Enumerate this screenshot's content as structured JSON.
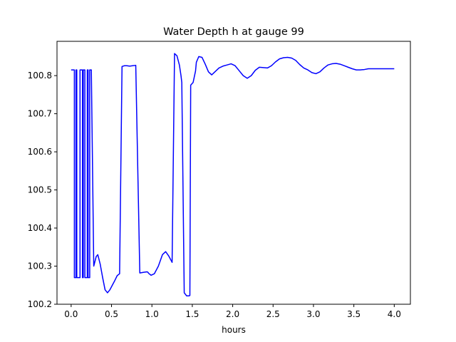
{
  "chart_data": {
    "type": "line",
    "title": "Water Depth h at gauge 99",
    "xlabel": "hours",
    "ylabel": "",
    "xlim": [
      -0.175,
      4.2
    ],
    "ylim": [
      100.2,
      100.89
    ],
    "xticks": [
      0.0,
      0.5,
      1.0,
      1.5,
      2.0,
      2.5,
      3.0,
      3.5,
      4.0
    ],
    "xtick_labels": [
      "0.0",
      "0.5",
      "1.0",
      "1.5",
      "2.0",
      "2.5",
      "3.0",
      "3.5",
      "4.0"
    ],
    "yticks": [
      100.2,
      100.3,
      100.4,
      100.5,
      100.6,
      100.7,
      100.8
    ],
    "ytick_labels": [
      "100.2",
      "100.3",
      "100.4",
      "100.5",
      "100.6",
      "100.7",
      "100.8"
    ],
    "grid": false,
    "line_color": "#0000ff",
    "series": [
      {
        "x": [
          0.0,
          0.04,
          0.04,
          0.06,
          0.06,
          0.07,
          0.07,
          0.11,
          0.11,
          0.14,
          0.14,
          0.15,
          0.15,
          0.17,
          0.17,
          0.2,
          0.2,
          0.21,
          0.21,
          0.23,
          0.23,
          0.25,
          0.28,
          0.31,
          0.33,
          0.36,
          0.39,
          0.42,
          0.45,
          0.48,
          0.51,
          0.54,
          0.57,
          0.6,
          0.63,
          0.66,
          0.69,
          0.72,
          0.73,
          0.76,
          0.8,
          0.85,
          0.9,
          0.94,
          0.95,
          0.96,
          0.99,
          1.03,
          1.08,
          1.13,
          1.17,
          1.21,
          1.25,
          1.28,
          1.31,
          1.34,
          1.36,
          1.37,
          1.4,
          1.43,
          1.46,
          1.47,
          1.48,
          1.51,
          1.54,
          1.55,
          1.58,
          1.62,
          1.66,
          1.7,
          1.74,
          1.78,
          1.83,
          1.88,
          1.93,
          1.98,
          2.03,
          2.08,
          2.13,
          2.18,
          2.23,
          2.28,
          2.33,
          2.38,
          2.43,
          2.48,
          2.53,
          2.58,
          2.63,
          2.68,
          2.73,
          2.78,
          2.83,
          2.88,
          2.93,
          2.98,
          3.03,
          3.08,
          3.13,
          3.18,
          3.23,
          3.28,
          3.33,
          3.38,
          3.43,
          3.48,
          3.53,
          3.58,
          3.63,
          3.68,
          3.73,
          3.78,
          3.83,
          3.88,
          3.93,
          4.0
        ],
        "y": [
          100.815,
          100.815,
          100.27,
          100.27,
          100.815,
          100.815,
          100.27,
          100.27,
          100.815,
          100.815,
          100.27,
          100.27,
          100.815,
          100.815,
          100.27,
          100.27,
          100.815,
          100.815,
          100.27,
          100.27,
          100.815,
          100.815,
          100.3,
          100.325,
          100.33,
          100.305,
          100.27,
          100.238,
          100.23,
          100.238,
          100.25,
          100.262,
          100.275,
          100.28,
          100.824,
          100.826,
          100.826,
          100.825,
          100.825,
          100.826,
          100.827,
          100.282,
          100.284,
          100.285,
          100.284,
          100.281,
          100.276,
          100.28,
          100.3,
          100.33,
          100.338,
          100.326,
          100.31,
          100.858,
          100.852,
          100.828,
          100.8,
          100.782,
          100.23,
          100.222,
          100.222,
          100.223,
          100.775,
          100.782,
          100.812,
          100.835,
          100.85,
          100.848,
          100.83,
          100.81,
          100.802,
          100.81,
          100.82,
          100.825,
          100.828,
          100.831,
          100.826,
          100.813,
          100.8,
          100.793,
          100.8,
          100.814,
          100.822,
          100.821,
          100.82,
          100.826,
          100.836,
          100.844,
          100.847,
          100.848,
          100.846,
          100.84,
          100.829,
          100.82,
          100.815,
          100.808,
          100.805,
          100.81,
          100.82,
          100.828,
          100.831,
          100.832,
          100.83,
          100.826,
          100.822,
          100.818,
          100.815,
          100.815,
          100.816,
          100.818,
          100.818,
          100.818,
          100.818,
          100.818,
          100.818,
          100.818
        ]
      }
    ]
  }
}
